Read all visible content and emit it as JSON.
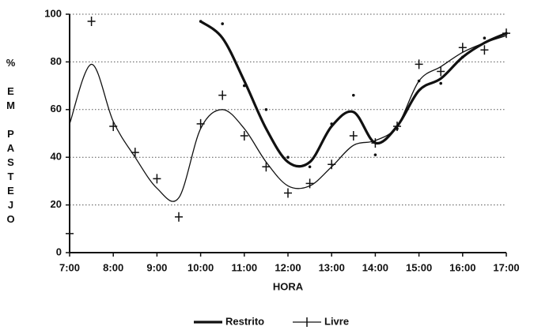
{
  "chart_data": {
    "type": "line",
    "x_label": "HORA",
    "y_label": "% EM PASTEJO",
    "x": [
      7,
      7.5,
      8,
      8.5,
      9,
      9.5,
      10,
      10.5,
      11,
      11.5,
      12,
      12.5,
      13,
      13.5,
      14,
      14.5,
      15,
      15.5,
      16,
      16.5,
      17
    ],
    "series": [
      {
        "name": "Restrito",
        "color": "#111111",
        "marker": "dot",
        "values": [
          null,
          null,
          null,
          null,
          null,
          null,
          97,
          96,
          70,
          60,
          40,
          36,
          54,
          66,
          41,
          52,
          72,
          71,
          82,
          90,
          92
        ],
        "fit": [
          null,
          null,
          null,
          null,
          null,
          null,
          97,
          90,
          72,
          52,
          38,
          38,
          53,
          59,
          46,
          53,
          68,
          73,
          82,
          88,
          92
        ]
      },
      {
        "name": "Livre",
        "color": "#111111",
        "marker": "plus",
        "values": [
          8,
          97,
          53,
          42,
          31,
          15,
          54,
          66,
          49,
          36,
          25,
          29,
          37,
          49,
          46,
          53,
          79,
          76,
          86,
          85,
          92
        ],
        "fit": [
          54,
          79,
          55,
          40,
          27,
          23,
          52,
          60,
          52,
          38,
          28,
          28,
          36,
          45,
          47,
          53,
          72,
          78,
          84,
          88,
          91
        ]
      }
    ],
    "xlim": [
      7,
      17
    ],
    "xticks": [
      {
        "value": 7,
        "label": "7:00"
      },
      {
        "value": 8,
        "label": "8:00"
      },
      {
        "value": 9,
        "label": "9:00"
      },
      {
        "value": 10,
        "label": "10:00"
      },
      {
        "value": 11,
        "label": "11:00"
      },
      {
        "value": 12,
        "label": "12:00"
      },
      {
        "value": 13,
        "label": "13:00"
      },
      {
        "value": 14,
        "label": "14:00"
      },
      {
        "value": 15,
        "label": "15:00"
      },
      {
        "value": 16,
        "label": "16:00"
      },
      {
        "value": 17,
        "label": "17:00"
      }
    ],
    "ylim": [
      0,
      100
    ],
    "yticks": [
      0,
      20,
      40,
      60,
      80,
      100
    ],
    "grid": true,
    "legend": "bottom"
  }
}
